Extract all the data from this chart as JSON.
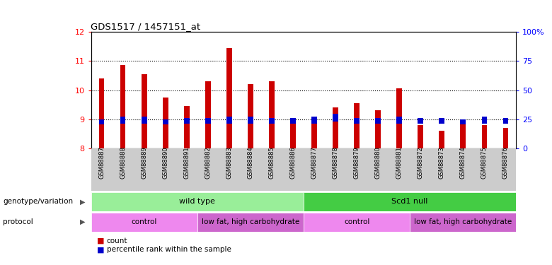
{
  "title": "GDS1517 / 1457151_at",
  "samples": [
    "GSM88887",
    "GSM88888",
    "GSM88889",
    "GSM88890",
    "GSM88891",
    "GSM88882",
    "GSM88883",
    "GSM88884",
    "GSM88885",
    "GSM88886",
    "GSM88877",
    "GSM88878",
    "GSM88879",
    "GSM88880",
    "GSM88881",
    "GSM88872",
    "GSM88873",
    "GSM88874",
    "GSM88875",
    "GSM88876"
  ],
  "count_values": [
    10.4,
    10.85,
    10.55,
    9.75,
    9.45,
    10.3,
    11.45,
    10.2,
    10.3,
    9.05,
    9.05,
    9.4,
    9.55,
    9.3,
    10.05,
    8.8,
    8.6,
    8.9,
    8.8,
    8.7
  ],
  "percentile_heights": [
    0.18,
    0.22,
    0.22,
    0.18,
    0.2,
    0.2,
    0.22,
    0.22,
    0.2,
    0.2,
    0.22,
    0.28,
    0.2,
    0.2,
    0.22,
    0.2,
    0.2,
    0.18,
    0.22,
    0.2
  ],
  "percentile_bottoms": [
    8.82,
    8.86,
    8.86,
    8.82,
    8.84,
    8.84,
    8.86,
    8.86,
    8.84,
    8.84,
    8.86,
    8.92,
    8.84,
    8.84,
    8.86,
    8.84,
    8.84,
    8.82,
    8.86,
    8.84
  ],
  "bar_bottom": 8.0,
  "ylim_left": [
    8.0,
    12.0
  ],
  "ylim_right": [
    0,
    100
  ],
  "yticks_left": [
    8,
    9,
    10,
    11,
    12
  ],
  "yticks_right": [
    0,
    25,
    50,
    75,
    100
  ],
  "ytick_labels_right": [
    "0",
    "25",
    "50",
    "75",
    "100%"
  ],
  "bar_color": "#cc0000",
  "percentile_color": "#0000cc",
  "bar_width": 0.25,
  "genotype_groups": [
    {
      "label": "wild type",
      "start": 0,
      "end": 10,
      "color": "#99ee99"
    },
    {
      "label": "Scd1 null",
      "start": 10,
      "end": 20,
      "color": "#44cc44"
    }
  ],
  "protocol_groups": [
    {
      "label": "control",
      "start": 0,
      "end": 5,
      "color": "#ee88ee"
    },
    {
      "label": "low fat, high carbohydrate",
      "start": 5,
      "end": 10,
      "color": "#cc66cc"
    },
    {
      "label": "control",
      "start": 10,
      "end": 15,
      "color": "#ee88ee"
    },
    {
      "label": "low fat, high carbohydrate",
      "start": 15,
      "end": 20,
      "color": "#cc66cc"
    }
  ],
  "xlabel_genotype": "genotype/variation",
  "xlabel_protocol": "protocol",
  "legend_count": "count",
  "legend_percentile": "percentile rank within the sample",
  "dotted_lines": [
    9,
    10,
    11
  ],
  "background_color": "#ffffff",
  "plot_bg_color": "#ffffff",
  "tick_area_color": "#cccccc",
  "geno_light_color": "#aaffaa",
  "geno_dark_color": "#44cc44"
}
